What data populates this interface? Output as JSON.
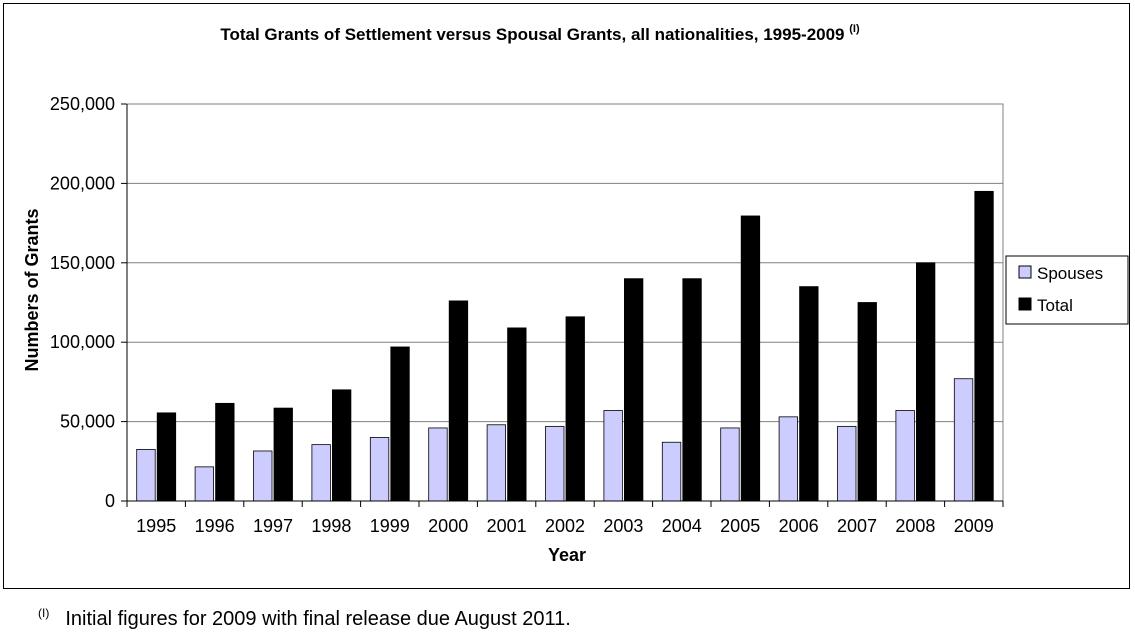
{
  "chart_data": {
    "type": "bar",
    "title": "Total Grants of Settlement versus Spousal Grants, all nationalities, 1995-2009",
    "title_superscript": "(I)",
    "xlabel": "Year",
    "ylabel": "Numbers of Grants",
    "categories": [
      "1995",
      "1996",
      "1997",
      "1998",
      "1999",
      "2000",
      "2001",
      "2002",
      "2003",
      "2004",
      "2005",
      "2006",
      "2007",
      "2008",
      "2009"
    ],
    "series": [
      {
        "name": "Spouses",
        "color": "#ccccff",
        "values": [
          32500,
          21500,
          31500,
          35500,
          40000,
          46000,
          48000,
          47000,
          57000,
          37000,
          46000,
          53000,
          47000,
          57000,
          77000
        ]
      },
      {
        "name": "Total",
        "color": "#000000",
        "values": [
          55500,
          61500,
          58500,
          70000,
          97000,
          126000,
          109000,
          116000,
          140000,
          140000,
          179500,
          135000,
          125000,
          150000,
          195000
        ]
      }
    ],
    "ylim": [
      0,
      250000
    ],
    "yticks": [
      0,
      50000,
      100000,
      150000,
      200000,
      250000
    ],
    "ytick_labels": [
      "0",
      "50,000",
      "100,000",
      "150,000",
      "200,000",
      "250,000"
    ],
    "grid": true,
    "legend_position": "right"
  },
  "footnote": {
    "marker": "(I)",
    "text": "Initial figures for 2009 with final release due August 2011."
  }
}
